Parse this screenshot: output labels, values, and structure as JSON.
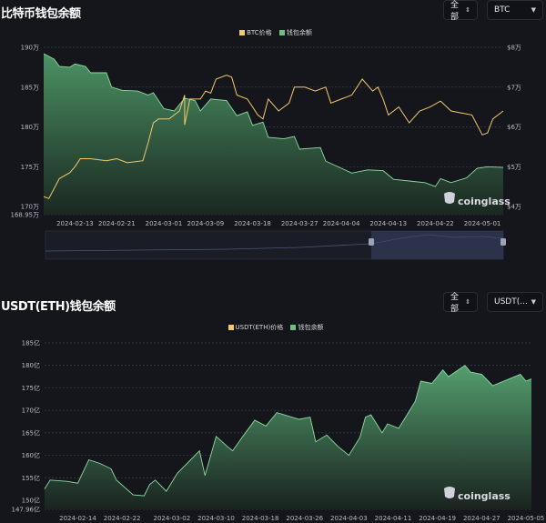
{
  "chart_data": [
    {
      "type": "area",
      "title": "比特币钱包余额",
      "controls": {
        "range": "全部",
        "asset": "BTC"
      },
      "legend": [
        "BTC价格",
        "钱包余额"
      ],
      "legend_placement": "top-center",
      "colors": {
        "price": "#f2c96b",
        "balance": "#6fbf85"
      },
      "x_ticks": [
        "2024-02-13",
        "2024-02-21",
        "2024-03-01",
        "2024-03-09",
        "2024-03-18",
        "2024-03-27",
        "2024-04-04",
        "2024-04-13",
        "2024-04-22",
        "2024-05-01"
      ],
      "y_left_ticks": [
        "190万",
        "185万",
        "180万",
        "175万",
        "170万",
        "168.95万"
      ],
      "y_left_range": [
        168.95,
        190
      ],
      "y_right_ticks": [
        "$8万",
        "$7万",
        "$6万",
        "$5万",
        "$4万"
      ],
      "y_right_range": [
        4,
        8
      ],
      "grid": true,
      "watermark": "coinglass",
      "series": [
        {
          "name": "钱包余额",
          "unit": "万",
          "axis": "left",
          "points": [
            [
              "2024-02-07",
              189.2
            ],
            [
              "2024-02-09",
              188.5
            ],
            [
              "2024-02-10",
              187.6
            ],
            [
              "2024-02-12",
              187.5
            ],
            [
              "2024-02-13",
              187.9
            ],
            [
              "2024-02-15",
              187.6
            ],
            [
              "2024-02-16",
              186.8
            ],
            [
              "2024-02-19",
              186.8
            ],
            [
              "2024-02-20",
              185.0
            ],
            [
              "2024-02-22",
              184.6
            ],
            [
              "2024-02-25",
              184.5
            ],
            [
              "2024-02-27",
              184.0
            ],
            [
              "2024-02-28",
              184.3
            ],
            [
              "2024-03-01",
              182.3
            ],
            [
              "2024-03-03",
              182.0
            ],
            [
              "2024-03-05",
              183.6
            ],
            [
              "2024-03-07",
              183.3
            ],
            [
              "2024-03-08",
              182.0
            ],
            [
              "2024-03-10",
              183.5
            ],
            [
              "2024-03-13",
              183.3
            ],
            [
              "2024-03-15",
              181.4
            ],
            [
              "2024-03-17",
              181.9
            ],
            [
              "2024-03-18",
              180.2
            ],
            [
              "2024-03-20",
              180.6
            ],
            [
              "2024-03-21",
              178.7
            ],
            [
              "2024-03-24",
              178.5
            ],
            [
              "2024-03-26",
              178.8
            ],
            [
              "2024-03-27",
              177.2
            ],
            [
              "2024-03-31",
              177.4
            ],
            [
              "2024-04-01",
              175.7
            ],
            [
              "2024-04-04",
              174.8
            ],
            [
              "2024-04-06",
              174.2
            ],
            [
              "2024-04-09",
              174.6
            ],
            [
              "2024-04-12",
              174.5
            ],
            [
              "2024-04-14",
              173.4
            ],
            [
              "2024-04-17",
              173.2
            ],
            [
              "2024-04-20",
              173.0
            ],
            [
              "2024-04-22",
              172.5
            ],
            [
              "2024-04-23",
              173.5
            ],
            [
              "2024-04-25",
              173.0
            ],
            [
              "2024-04-28",
              173.6
            ],
            [
              "2024-04-30",
              174.8
            ],
            [
              "2024-05-02",
              175.0
            ],
            [
              "2024-05-05",
              174.9
            ]
          ]
        },
        {
          "name": "BTC价格",
          "unit": "万美元",
          "axis": "right",
          "points": [
            [
              "2024-02-07",
              4.25
            ],
            [
              "2024-02-08",
              4.2
            ],
            [
              "2024-02-10",
              4.7
            ],
            [
              "2024-02-12",
              4.85
            ],
            [
              "2024-02-13",
              5.0
            ],
            [
              "2024-02-14",
              5.2
            ],
            [
              "2024-02-16",
              5.2
            ],
            [
              "2024-02-19",
              5.15
            ],
            [
              "2024-02-21",
              5.2
            ],
            [
              "2024-02-23",
              5.1
            ],
            [
              "2024-02-26",
              5.15
            ],
            [
              "2024-02-27",
              5.6
            ],
            [
              "2024-02-28",
              6.1
            ],
            [
              "2024-02-29",
              6.2
            ],
            [
              "2024-03-02",
              6.2
            ],
            [
              "2024-03-04",
              6.4
            ],
            [
              "2024-03-05",
              6.8
            ],
            [
              "2024-03-05",
              6.05
            ],
            [
              "2024-03-06",
              6.7
            ],
            [
              "2024-03-08",
              6.7
            ],
            [
              "2024-03-09",
              6.9
            ],
            [
              "2024-03-10",
              6.85
            ],
            [
              "2024-03-11",
              7.2
            ],
            [
              "2024-03-13",
              7.3
            ],
            [
              "2024-03-14",
              7.25
            ],
            [
              "2024-03-15",
              6.8
            ],
            [
              "2024-03-17",
              6.7
            ],
            [
              "2024-03-19",
              6.3
            ],
            [
              "2024-03-20",
              6.2
            ],
            [
              "2024-03-21",
              6.7
            ],
            [
              "2024-03-23",
              6.4
            ],
            [
              "2024-03-25",
              6.6
            ],
            [
              "2024-03-26",
              7.0
            ],
            [
              "2024-03-28",
              7.0
            ],
            [
              "2024-03-30",
              6.9
            ],
            [
              "2024-04-01",
              7.0
            ],
            [
              "2024-04-02",
              6.6
            ],
            [
              "2024-04-04",
              6.7
            ],
            [
              "2024-04-06",
              6.8
            ],
            [
              "2024-04-08",
              7.2
            ],
            [
              "2024-04-10",
              6.9
            ],
            [
              "2024-04-11",
              7.0
            ],
            [
              "2024-04-12",
              6.7
            ],
            [
              "2024-04-13",
              6.3
            ],
            [
              "2024-04-15",
              6.5
            ],
            [
              "2024-04-17",
              6.1
            ],
            [
              "2024-04-19",
              6.4
            ],
            [
              "2024-04-21",
              6.5
            ],
            [
              "2024-04-23",
              6.65
            ],
            [
              "2024-04-25",
              6.4
            ],
            [
              "2024-04-27",
              6.35
            ],
            [
              "2024-04-29",
              6.3
            ],
            [
              "2024-05-01",
              5.8
            ],
            [
              "2024-05-02",
              5.85
            ],
            [
              "2024-05-03",
              6.2
            ],
            [
              "2024-05-05",
              6.4
            ]
          ]
        }
      ]
    },
    {
      "type": "area",
      "title": "USDT(ETH)钱包余额",
      "controls": {
        "range": "全部",
        "asset": "USDT(..."
      },
      "legend": [
        "USDT(ETH)价格",
        "钱包余额"
      ],
      "legend_placement": "top-center",
      "colors": {
        "price": "#f2c96b",
        "balance": "#6fbf85"
      },
      "x_ticks": [
        "2024-02-14",
        "2024-02-22",
        "2024-03-02",
        "2024-03-10",
        "2024-03-18",
        "2024-03-26",
        "2024-04-03",
        "2024-04-11",
        "2024-04-19",
        "2024-04-27",
        "2024-05-05"
      ],
      "y_left_ticks": [
        "185亿",
        "180亿",
        "175亿",
        "170亿",
        "165亿",
        "160亿",
        "155亿",
        "150亿",
        "147.96亿"
      ],
      "y_left_range": [
        147.96,
        185
      ],
      "grid": true,
      "watermark": "coinglass",
      "series": [
        {
          "name": "钱包余额",
          "unit": "亿",
          "axis": "left",
          "points": [
            [
              "2024-02-08",
              152.5
            ],
            [
              "2024-02-09",
              154.5
            ],
            [
              "2024-02-12",
              154.2
            ],
            [
              "2024-02-14",
              153.8
            ],
            [
              "2024-02-16",
              159.0
            ],
            [
              "2024-02-18",
              158.2
            ],
            [
              "2024-02-20",
              157.0
            ],
            [
              "2024-02-21",
              154.5
            ],
            [
              "2024-02-24",
              151.2
            ],
            [
              "2024-02-26",
              151.0
            ],
            [
              "2024-02-27",
              153.5
            ],
            [
              "2024-02-28",
              154.5
            ],
            [
              "2024-03-01",
              152.0
            ],
            [
              "2024-03-03",
              156.0
            ],
            [
              "2024-03-05",
              158.5
            ],
            [
              "2024-03-07",
              161.0
            ],
            [
              "2024-03-08",
              155.5
            ],
            [
              "2024-03-10",
              164.2
            ],
            [
              "2024-03-12",
              162.0
            ],
            [
              "2024-03-13",
              161.0
            ],
            [
              "2024-03-15",
              164.5
            ],
            [
              "2024-03-17",
              167.8
            ],
            [
              "2024-03-19",
              166.5
            ],
            [
              "2024-03-21",
              169.5
            ],
            [
              "2024-03-25",
              168.0
            ],
            [
              "2024-03-27",
              168.5
            ],
            [
              "2024-03-28",
              163.0
            ],
            [
              "2024-03-30",
              164.5
            ],
            [
              "2024-04-01",
              162.0
            ],
            [
              "2024-04-03",
              160.0
            ],
            [
              "2024-04-05",
              164.0
            ],
            [
              "2024-04-06",
              168.5
            ],
            [
              "2024-04-07",
              169.0
            ],
            [
              "2024-04-09",
              165.0
            ],
            [
              "2024-04-10",
              167.0
            ],
            [
              "2024-04-12",
              166.0
            ],
            [
              "2024-04-13",
              168.0
            ],
            [
              "2024-04-15",
              172.0
            ],
            [
              "2024-04-16",
              176.5
            ],
            [
              "2024-04-18",
              176.0
            ],
            [
              "2024-04-20",
              179.0
            ],
            [
              "2024-04-21",
              177.5
            ],
            [
              "2024-04-24",
              180.0
            ],
            [
              "2024-04-25",
              178.5
            ],
            [
              "2024-04-27",
              178.0
            ],
            [
              "2024-04-29",
              175.5
            ],
            [
              "2024-05-01",
              176.5
            ],
            [
              "2024-05-04",
              178.0
            ],
            [
              "2024-05-05",
              176.5
            ],
            [
              "2024-05-06",
              177.0
            ]
          ]
        }
      ]
    }
  ]
}
